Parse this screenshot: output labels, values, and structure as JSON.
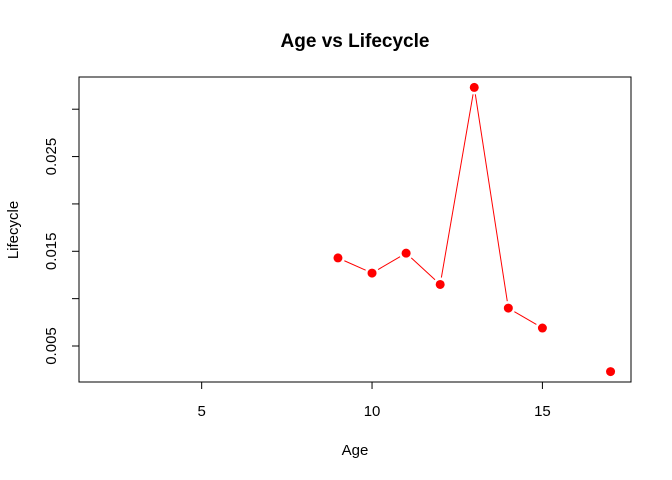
{
  "chart_data": {
    "type": "line",
    "title": "Age vs Lifecycle",
    "xlabel": "Age",
    "ylabel": "Lifecycle",
    "xlim": [
      1.4,
      17.6
    ],
    "ylim": [
      0.0012,
      0.0334
    ],
    "x_ticks": [
      5,
      10,
      15
    ],
    "y_ticks": [
      0.005,
      0.015,
      0.025
    ],
    "x_tick_labels": [
      "5",
      "10",
      "15"
    ],
    "y_tick_labels": [
      "0.005",
      "0.015",
      "0.025"
    ],
    "grid": false,
    "legend": "none",
    "series": [
      {
        "x": [
          9,
          10,
          11,
          12,
          13,
          14,
          15,
          17
        ],
        "y": [
          0.0143,
          0.0127,
          0.0148,
          0.0115,
          0.0323,
          0.009,
          0.0069,
          0.0023
        ],
        "color": "#ff0000",
        "connect": [
          [
            0,
            1
          ],
          [
            1,
            2
          ],
          [
            2,
            3
          ],
          [
            3,
            4
          ],
          [
            4,
            5
          ],
          [
            5,
            6
          ]
        ]
      }
    ]
  }
}
